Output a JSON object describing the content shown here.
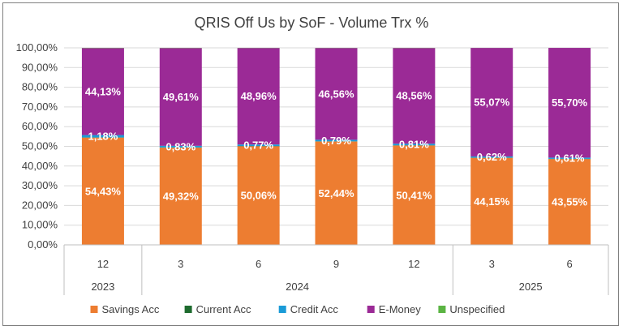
{
  "chart_data": {
    "type": "bar",
    "stacked": true,
    "title": "QRIS Off Us by SoF - Volume Trx %",
    "categories": [
      {
        "month": "12",
        "year": "2023"
      },
      {
        "month": "3",
        "year": "2024"
      },
      {
        "month": "6",
        "year": "2024"
      },
      {
        "month": "9",
        "year": "2024"
      },
      {
        "month": "12",
        "year": "2024"
      },
      {
        "month": "3",
        "year": "2025"
      },
      {
        "month": "6",
        "year": "2025"
      }
    ],
    "year_groups": [
      {
        "label": "2023",
        "count": 1
      },
      {
        "label": "2024",
        "count": 4
      },
      {
        "label": "2025",
        "count": 2
      }
    ],
    "series": [
      {
        "name": "Savings Acc",
        "color": "#ED7D31",
        "values": [
          54.43,
          49.32,
          50.06,
          52.44,
          50.41,
          44.15,
          43.55
        ],
        "labels": [
          "54,43%",
          "49,32%",
          "50,06%",
          "52,44%",
          "50,41%",
          "44,15%",
          "43,55%"
        ]
      },
      {
        "name": "Current Acc",
        "color": "#1E6B2E",
        "values": [
          0.12,
          0.12,
          0.12,
          0.12,
          0.12,
          0.12,
          0.12
        ],
        "labels": [
          "",
          "",
          "",
          "",
          "",
          "",
          ""
        ]
      },
      {
        "name": "Credit Acc",
        "color": "#1A9BD7",
        "values": [
          1.18,
          0.83,
          0.77,
          0.79,
          0.81,
          0.62,
          0.61
        ],
        "labels": [
          "1,18%",
          "0,83%",
          "0,77%",
          "0,79%",
          "0,81%",
          "0,62%",
          "0,61%"
        ]
      },
      {
        "name": "E-Money",
        "color": "#9B2A96",
        "values": [
          44.13,
          49.61,
          48.96,
          46.56,
          48.56,
          55.07,
          55.7
        ],
        "labels": [
          "44,13%",
          "49,61%",
          "48,96%",
          "46,56%",
          "48,56%",
          "55,07%",
          "55,70%"
        ]
      },
      {
        "name": "Unspecified",
        "color": "#5BB443",
        "values": [
          0.14,
          0.12,
          0.09,
          0.09,
          0.1,
          0.04,
          0.02
        ],
        "labels": [
          "",
          "",
          "",
          "",
          "",
          "",
          ""
        ]
      }
    ],
    "yaxis": {
      "ylim": [
        0,
        100
      ],
      "ticks": [
        0,
        10,
        20,
        30,
        40,
        50,
        60,
        70,
        80,
        90,
        100
      ],
      "tick_labels": [
        "0,00%",
        "10,00%",
        "20,00%",
        "30,00%",
        "40,00%",
        "50,00%",
        "60,00%",
        "70,00%",
        "80,00%",
        "90,00%",
        "100,00%"
      ]
    },
    "grid": true,
    "legend_position": "bottom"
  }
}
